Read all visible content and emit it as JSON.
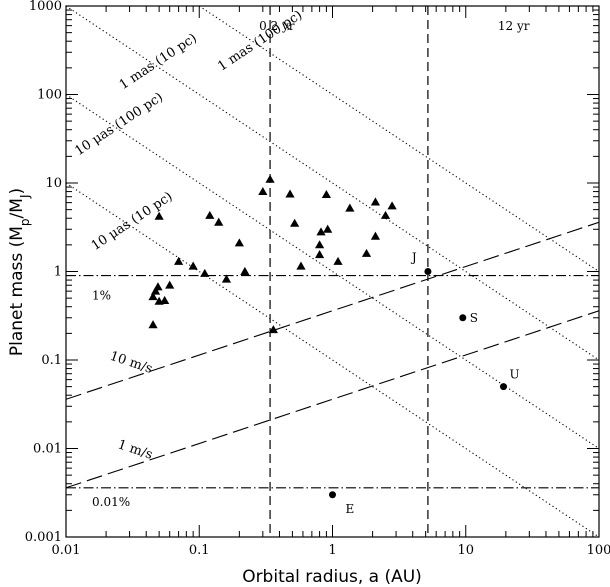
{
  "chart_data": {
    "type": "scatter",
    "xscale": "log",
    "yscale": "log",
    "xlim": [
      0.01,
      100
    ],
    "ylim": [
      0.001,
      1000
    ],
    "xlabel": "Orbital radius, a (AU)",
    "ylabel_main": "Planet mass (M",
    "ylabel_sub1": "p",
    "ylabel_mid": "/M",
    "ylabel_sub2": "J",
    "ylabel_end": ")",
    "xticks": [
      {
        "value": 0.01,
        "label": "0.01"
      },
      {
        "value": 0.1,
        "label": "0.1"
      },
      {
        "value": 1,
        "label": "1"
      },
      {
        "value": 10,
        "label": "10"
      },
      {
        "value": 100,
        "label": "100"
      }
    ],
    "yticks": [
      {
        "value": 0.001,
        "label": "0.001"
      },
      {
        "value": 0.01,
        "label": "0.01"
      },
      {
        "value": 0.1,
        "label": "0.1"
      },
      {
        "value": 1,
        "label": "1"
      },
      {
        "value": 10,
        "label": "10"
      },
      {
        "value": 100,
        "label": "100"
      },
      {
        "value": 1000,
        "label": "1000"
      }
    ],
    "triangles": [
      [
        0.045,
        0.25
      ],
      [
        0.045,
        0.52
      ],
      [
        0.047,
        0.6
      ],
      [
        0.049,
        0.67
      ],
      [
        0.05,
        0.46
      ],
      [
        0.055,
        0.47
      ],
      [
        0.06,
        0.7
      ],
      [
        0.05,
        4.2
      ],
      [
        0.07,
        1.3
      ],
      [
        0.09,
        1.15
      ],
      [
        0.11,
        0.95
      ],
      [
        0.12,
        4.3
      ],
      [
        0.14,
        3.6
      ],
      [
        0.16,
        0.82
      ],
      [
        0.2,
        2.1
      ],
      [
        0.22,
        1.0
      ],
      [
        0.3,
        8.0
      ],
      [
        0.34,
        11.0
      ],
      [
        0.36,
        0.22
      ],
      [
        0.48,
        7.5
      ],
      [
        0.52,
        3.5
      ],
      [
        0.58,
        1.15
      ],
      [
        0.8,
        1.55
      ],
      [
        0.8,
        2.0
      ],
      [
        0.82,
        2.8
      ],
      [
        0.9,
        7.4
      ],
      [
        0.92,
        3.0
      ],
      [
        1.1,
        1.3
      ],
      [
        1.35,
        5.2
      ],
      [
        1.8,
        1.6
      ],
      [
        2.1,
        2.5
      ],
      [
        2.1,
        6.1
      ],
      [
        2.5,
        4.3
      ],
      [
        2.8,
        5.5
      ]
    ],
    "solar_planets": [
      {
        "name": "J",
        "a": 5.2,
        "m": 1.0
      },
      {
        "name": "S",
        "a": 9.5,
        "m": 0.3
      },
      {
        "name": "U",
        "a": 19.2,
        "m": 0.05
      },
      {
        "name": "E",
        "a": 1.0,
        "m": 0.003
      }
    ],
    "vertical_lines": [
      {
        "x": 0.34,
        "label": "0.2 yr"
      },
      {
        "x": 5.2,
        "label": "12 yr"
      }
    ],
    "horizontal_lines": [
      {
        "y": 0.9,
        "label": "1%"
      },
      {
        "y": 0.0036,
        "label": "0.01%"
      }
    ],
    "rv_lines": [
      {
        "label": "10 m/s",
        "y_at_xmin": 0.036,
        "slope": 0.5
      },
      {
        "label": "1 m/s",
        "y_at_xmin": 0.0036,
        "slope": 0.5
      }
    ],
    "astrometry_lines": [
      {
        "label": "1 mas (100 pc)",
        "y_at_xmin": 10000,
        "slope": -1
      },
      {
        "label": "1 mas (10 pc)",
        "y_at_xmin": 1000,
        "slope": -1
      },
      {
        "label": "10 μas (100 pc)",
        "y_at_xmin": 100,
        "slope": -1
      },
      {
        "label": "10 μas (10 pc)",
        "y_at_xmin": 10,
        "slope": -1
      }
    ]
  }
}
